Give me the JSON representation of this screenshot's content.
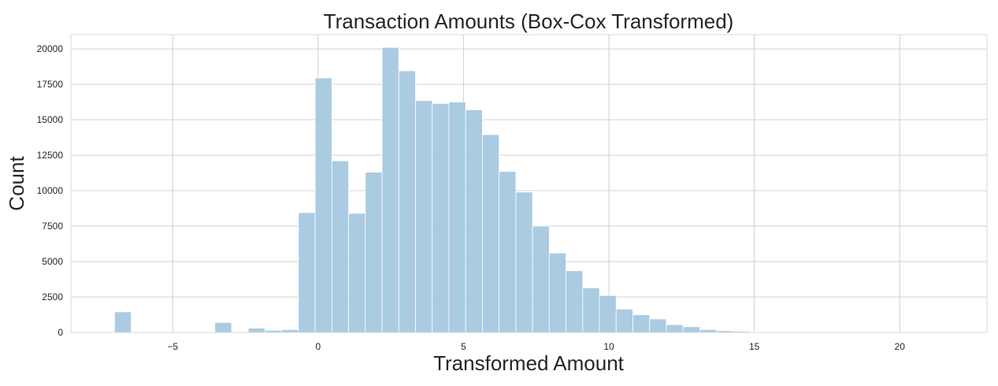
{
  "chart_data": {
    "type": "bar",
    "title": "Transaction Amounts (Box-Cox Transformed)",
    "xlabel": "Transformed Amount",
    "ylabel": "Count",
    "xlim": [
      -8.5,
      23
    ],
    "ylim": [
      0,
      21000
    ],
    "xticks": [
      -5,
      0,
      5,
      10,
      15,
      20
    ],
    "xtick_labels": [
      "−5",
      "0",
      "5",
      "10",
      "15",
      "20"
    ],
    "yticks": [
      0,
      2500,
      5000,
      7500,
      10000,
      12500,
      15000,
      17500,
      20000
    ],
    "ytick_labels": [
      "0",
      "2500",
      "5000",
      "7500",
      "10000",
      "12500",
      "15000",
      "17500",
      "20000"
    ],
    "grid": true,
    "bar_color": "#a6c8e0",
    "bar_edge_color": "#ffffff",
    "bin_width": 0.575,
    "bin_starts": [
      -7.0,
      -6.425,
      -5.85,
      -5.275,
      -4.7,
      -4.125,
      -3.55,
      -2.975,
      -2.4,
      -1.825,
      -1.25,
      -0.675,
      -0.1,
      0.475,
      1.05,
      1.625,
      2.2,
      2.775,
      3.35,
      3.925,
      4.5,
      5.075,
      5.65,
      6.225,
      6.8,
      7.375,
      7.95,
      8.525,
      9.1,
      9.675,
      10.25,
      10.825,
      11.4,
      11.975,
      12.55,
      13.125,
      13.7,
      14.275,
      14.85,
      15.425,
      16.0,
      16.575,
      17.15,
      17.725,
      18.3,
      18.875,
      19.45,
      20.025,
      20.6,
      21.175
    ],
    "values": [
      1450,
      0,
      0,
      0,
      0,
      0,
      700,
      50,
      300,
      150,
      200,
      8450,
      17950,
      12100,
      8400,
      11300,
      20100,
      18450,
      16350,
      16150,
      16250,
      15700,
      13950,
      11350,
      9900,
      7500,
      5600,
      4350,
      3150,
      2600,
      1650,
      1250,
      950,
      550,
      400,
      200,
      120,
      80,
      40,
      20,
      10,
      5,
      5,
      0,
      0,
      0,
      0,
      0,
      0,
      0
    ]
  }
}
